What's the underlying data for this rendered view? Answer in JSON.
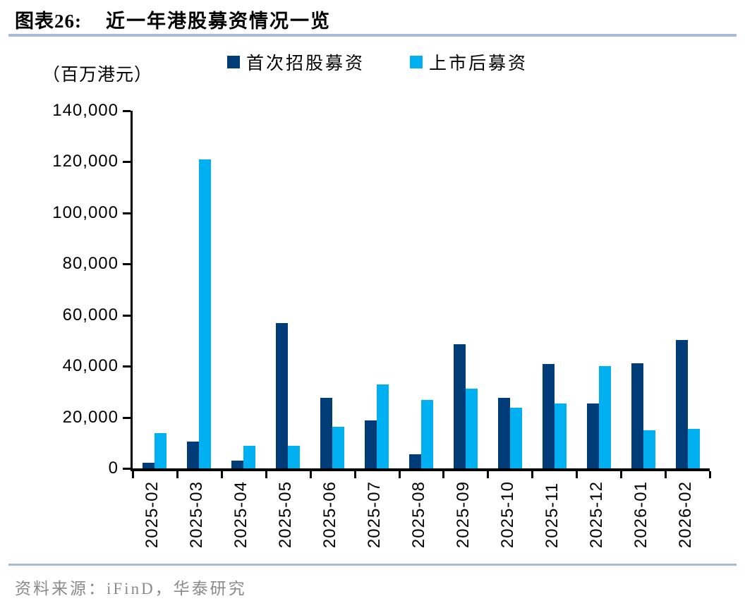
{
  "header": {
    "label": "图表26:",
    "title": "近一年港股募资情况一览"
  },
  "unit_label": "（百万港元）",
  "footer": {
    "source": "资料来源：iFinD，华泰研究"
  },
  "colors": {
    "ipo_series": "#003C78",
    "post_listing_series": "#00B0F0",
    "rule": "#a8bdd4",
    "axis": "#000000",
    "source_text": "#8a8a8a"
  },
  "chart_data": {
    "type": "bar",
    "title": "近一年港股募资情况一览",
    "xlabel": "",
    "ylabel": "（百万港元）",
    "ylim": [
      0,
      140000
    ],
    "yticks": [
      0,
      20000,
      40000,
      60000,
      80000,
      100000,
      120000,
      140000
    ],
    "grid": false,
    "legend_position": "top",
    "categories": [
      "2025-02",
      "2025-03",
      "2025-04",
      "2025-05",
      "2025-06",
      "2025-07",
      "2025-08",
      "2025-09",
      "2025-10",
      "2025-11",
      "2025-12",
      "2026-01",
      "2026-02"
    ],
    "series": [
      {
        "name": "首次招股募资",
        "color": "#003C78",
        "values": [
          2300,
          10400,
          3100,
          56800,
          27700,
          18700,
          5500,
          48600,
          27700,
          41000,
          25300,
          41100,
          50200
        ]
      },
      {
        "name": "上市后募资",
        "color": "#00B0F0",
        "values": [
          13700,
          120900,
          8800,
          8800,
          16300,
          32900,
          26900,
          31200,
          23700,
          25300,
          40100,
          14800,
          15400
        ]
      }
    ]
  }
}
